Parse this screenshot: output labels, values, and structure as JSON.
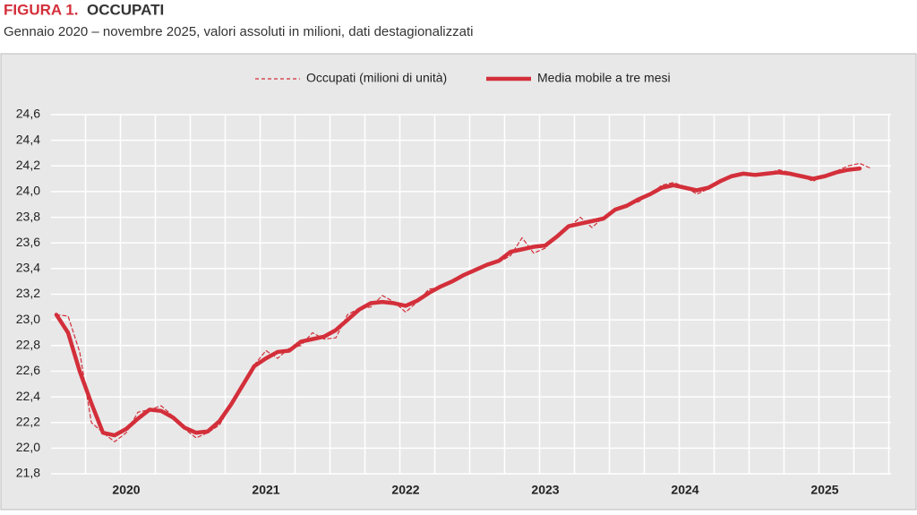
{
  "chart_data": {
    "type": "line",
    "figure_label": "FIGURA 1.",
    "title": "OCCUPATI",
    "subtitle": "Gennaio 2020 – novembre 2025, valori assoluti in milioni, dati destagionalizzati",
    "categories": [
      null,
      null,
      null,
      null,
      null,
      null,
      "2020",
      null,
      null,
      null,
      null,
      null,
      null,
      null,
      null,
      null,
      null,
      null,
      "2021",
      null,
      null,
      null,
      null,
      null,
      null,
      null,
      null,
      null,
      null,
      null,
      "2022",
      null,
      null,
      null,
      null,
      null,
      null,
      null,
      null,
      null,
      null,
      null,
      "2023",
      null,
      null,
      null,
      null,
      null,
      null,
      null,
      null,
      null,
      null,
      null,
      "2024",
      null,
      null,
      null,
      null,
      null,
      null,
      null,
      null,
      null,
      null,
      null,
      "2025",
      null,
      null,
      null,
      null
    ],
    "series": [
      {
        "name": "Occupati (milioni di unità)",
        "color": "#d32f3a",
        "style": "dashed",
        "values": [
          23.04,
          23.03,
          22.75,
          22.2,
          22.12,
          22.05,
          22.12,
          22.28,
          22.3,
          22.33,
          22.25,
          22.15,
          22.08,
          22.12,
          22.18,
          22.33,
          22.5,
          22.65,
          22.76,
          22.7,
          22.78,
          22.8,
          22.9,
          22.85,
          22.86,
          23.04,
          23.09,
          23.1,
          23.19,
          23.14,
          23.06,
          23.14,
          23.24,
          23.25,
          23.3,
          23.35,
          23.4,
          23.43,
          23.45,
          23.5,
          23.64,
          23.52,
          23.56,
          23.66,
          23.72,
          23.8,
          23.72,
          23.8,
          23.86,
          23.9,
          23.92,
          23.98,
          24.05,
          24.07,
          24.04,
          23.98,
          24.02,
          24.08,
          24.13,
          24.15,
          24.12,
          24.13,
          24.17,
          24.15,
          24.12,
          24.08,
          24.13,
          24.16,
          24.2,
          24.22,
          24.18
        ]
      },
      {
        "name": "Media mobile a tre mesi",
        "color": "#d32f3a",
        "style": "solid",
        "values": [
          23.04,
          22.9,
          22.6,
          22.35,
          22.12,
          22.1,
          22.15,
          22.23,
          22.3,
          22.29,
          22.24,
          22.16,
          22.12,
          22.13,
          22.21,
          22.34,
          22.49,
          22.64,
          22.7,
          22.75,
          22.76,
          22.83,
          22.85,
          22.87,
          22.92,
          23.0,
          23.08,
          23.13,
          23.14,
          23.13,
          23.11,
          23.15,
          23.21,
          23.26,
          23.3,
          23.35,
          23.39,
          23.43,
          23.46,
          23.53,
          23.55,
          23.57,
          23.58,
          23.65,
          23.73,
          23.75,
          23.77,
          23.79,
          23.86,
          23.89,
          23.94,
          23.98,
          24.03,
          24.05,
          24.03,
          24.01,
          24.03,
          24.08,
          24.12,
          24.14,
          24.13,
          24.14,
          24.15,
          24.14,
          24.12,
          24.1,
          24.12,
          24.15,
          24.17,
          24.18,
          null
        ]
      }
    ],
    "ylim": [
      21.8,
      24.6
    ],
    "yticks": [
      {
        "value": 21.8,
        "label": "21,8"
      },
      {
        "value": 22.0,
        "label": "22,0"
      },
      {
        "value": 22.2,
        "label": "22,2"
      },
      {
        "value": 22.4,
        "label": "22,4"
      },
      {
        "value": 22.6,
        "label": "22,6"
      },
      {
        "value": 22.8,
        "label": "22,8"
      },
      {
        "value": 23.0,
        "label": "23,0"
      },
      {
        "value": 23.2,
        "label": "23,2"
      },
      {
        "value": 23.4,
        "label": "23,4"
      },
      {
        "value": 23.6,
        "label": "23,6"
      },
      {
        "value": 23.8,
        "label": "23,8"
      },
      {
        "value": 24.0,
        "label": "24,0"
      },
      {
        "value": 24.2,
        "label": "24,2"
      },
      {
        "value": 24.4,
        "label": "24,4"
      },
      {
        "value": 24.6,
        "label": "24,6"
      }
    ],
    "grid": true,
    "legend": "top"
  }
}
